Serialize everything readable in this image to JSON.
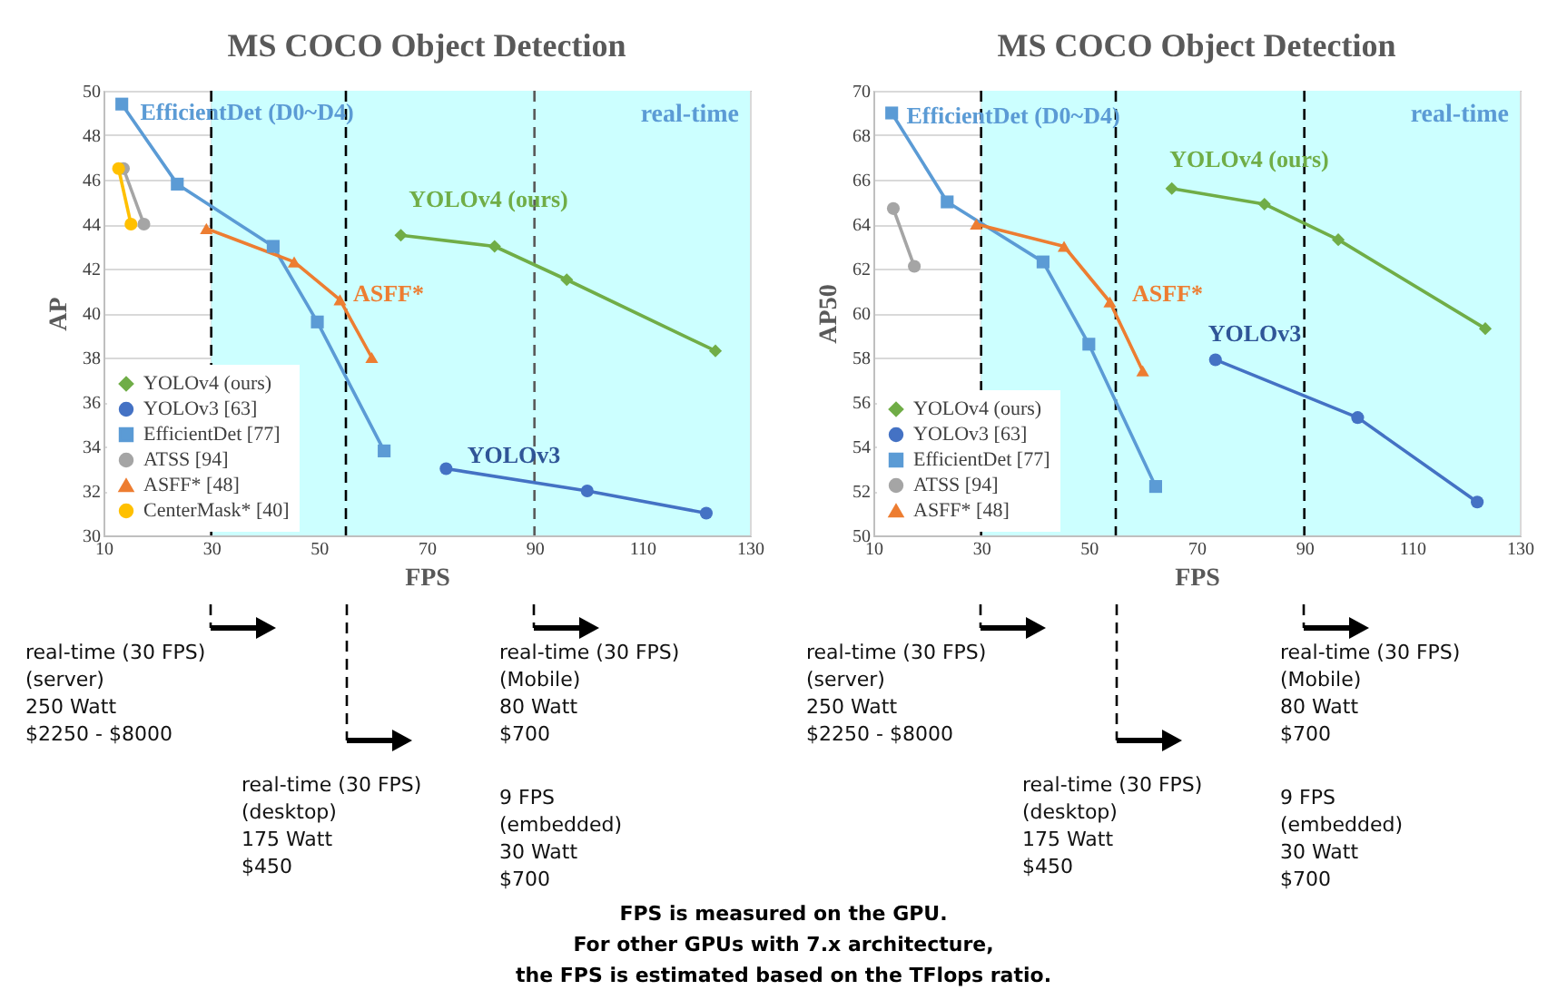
{
  "chart_data": [
    {
      "type": "line",
      "title": "MS COCO Object Detection",
      "xlabel": "FPS",
      "ylabel": "AP",
      "xlim": [
        10,
        130
      ],
      "xticks": [
        10,
        30,
        50,
        70,
        90,
        110,
        130
      ],
      "ylim": [
        30,
        50
      ],
      "yticks": [
        30,
        32,
        34,
        36,
        38,
        40,
        42,
        44,
        46,
        48,
        50
      ],
      "grid": true,
      "legend": "bottom left",
      "series": [
        {
          "name": "YOLOv4 (ours)",
          "color": "#70ad47",
          "marker": "diamond",
          "x": [
            65.2,
            82.6,
            96.0,
            123.6
          ],
          "values": [
            43.5,
            43.0,
            41.5,
            38.3
          ]
        },
        {
          "name": "YOLOv3 [63]",
          "color": "#4472c4",
          "marker": "circle",
          "x": [
            73.6,
            99.8,
            121.9
          ],
          "values": [
            33.0,
            32.0,
            31.0
          ]
        },
        {
          "name": "EfficientDet [77]",
          "color": "#5b9bd5",
          "marker": "square",
          "x": [
            13.4,
            23.7,
            41.5,
            49.7,
            62.1
          ],
          "values": [
            49.4,
            45.8,
            43.0,
            39.6,
            33.8
          ]
        },
        {
          "name": "ATSS [94]",
          "color": "#a5a5a5",
          "marker": "circle",
          "x": [
            13.7,
            17.5
          ],
          "values": [
            46.5,
            44.0
          ]
        },
        {
          "name": "ASFF* [48]",
          "color": "#ed7d31",
          "marker": "triangle",
          "x": [
            29.1,
            45.4,
            53.9,
            59.8
          ],
          "values": [
            43.8,
            42.3,
            40.6,
            38.0
          ]
        },
        {
          "name": "CenterMask* [40]",
          "color": "#ffc000",
          "marker": "circle",
          "x": [
            12.8,
            15.1
          ],
          "values": [
            46.5,
            44.0
          ]
        }
      ],
      "bands": [
        {
          "axis": "x",
          "from": 30,
          "to": 130,
          "label": "real-time",
          "color": "#ccffff"
        }
      ],
      "ref_lines": [
        {
          "axis": "x",
          "value": 30,
          "line_style": "dashed",
          "color": "#000000"
        },
        {
          "axis": "x",
          "value": 55,
          "line_style": "dashed",
          "color": "#000000"
        },
        {
          "axis": "x",
          "value": 90,
          "line_style": "dashed",
          "color": "#595959"
        }
      ],
      "annotations": [
        "EfficientDet (D0~D4)",
        "YOLOv4 (ours)",
        "ASFF*",
        "YOLOv3",
        "real-time (30 FPS)\n(server)\n250 Watt\n$2250 - $8000",
        "real-time (30 FPS)\n(desktop)\n175 Watt\n$450",
        "real-time (30 FPS)\n(Mobile)\n80 Watt\n$700",
        "9 FPS\n(embedded)\n30 Watt\n$700",
        "FPS is measured on the GPU.\nFor other GPUs with 7.x architecture,\nthe FPS is estimated based on the TFlops ratio."
      ]
    },
    {
      "type": "line",
      "title": "MS COCO Object Detection",
      "xlabel": "FPS",
      "ylabel": "AP50",
      "xlim": [
        10,
        130
      ],
      "xticks": [
        10,
        30,
        50,
        70,
        90,
        110,
        130
      ],
      "ylim": [
        50,
        70
      ],
      "yticks": [
        50,
        52,
        54,
        56,
        58,
        60,
        62,
        64,
        66,
        68,
        70
      ],
      "grid": true,
      "legend": "bottom left",
      "series": [
        {
          "name": "YOLOv4 (ours)",
          "color": "#70ad47",
          "marker": "diamond",
          "x": [
            65.4,
            82.6,
            96.3,
            123.6
          ],
          "values": [
            65.6,
            64.9,
            63.3,
            59.3
          ]
        },
        {
          "name": "YOLOv3 [63]",
          "color": "#4472c4",
          "marker": "circle",
          "x": [
            73.5,
            99.9,
            122.1
          ],
          "values": [
            57.9,
            55.3,
            51.5
          ]
        },
        {
          "name": "EfficientDet [77]",
          "color": "#5b9bd5",
          "marker": "square",
          "x": [
            13.4,
            23.7,
            41.5,
            50.0,
            62.4
          ],
          "values": [
            69.0,
            65.0,
            62.3,
            58.6,
            52.2
          ]
        },
        {
          "name": "ATSS [94]",
          "color": "#a5a5a5",
          "marker": "circle",
          "x": [
            13.7,
            17.6
          ],
          "values": [
            64.7,
            62.1
          ]
        },
        {
          "name": "ASFF* [48]",
          "color": "#ed7d31",
          "marker": "triangle",
          "x": [
            29.1,
            45.4,
            53.9,
            60.0
          ],
          "values": [
            64.0,
            63.0,
            60.5,
            57.4
          ]
        }
      ],
      "bands": [
        {
          "axis": "x",
          "from": 30,
          "to": 130,
          "label": "real-time",
          "color": "#ccffff"
        }
      ],
      "ref_lines": [
        {
          "axis": "x",
          "value": 30,
          "line_style": "dashed",
          "color": "#000000"
        },
        {
          "axis": "x",
          "value": 55,
          "line_style": "dashed",
          "color": "#000000"
        },
        {
          "axis": "x",
          "value": 90,
          "line_style": "dashed",
          "color": "#000000"
        }
      ],
      "annotations": [
        "EfficientDet (D0~D4)",
        "YOLOv4 (ours)",
        "ASFF*",
        "YOLOv3",
        "real-time (30 FPS)\n(server)\n250 Watt\n$2250 - $8000",
        "real-time (30 FPS)\n(desktop)\n175 Watt\n$450",
        "real-time (30 FPS)\n(Mobile)\n80 Watt\n$700",
        "9 FPS\n(embedded)\n30 Watt\n$700"
      ]
    }
  ]
}
